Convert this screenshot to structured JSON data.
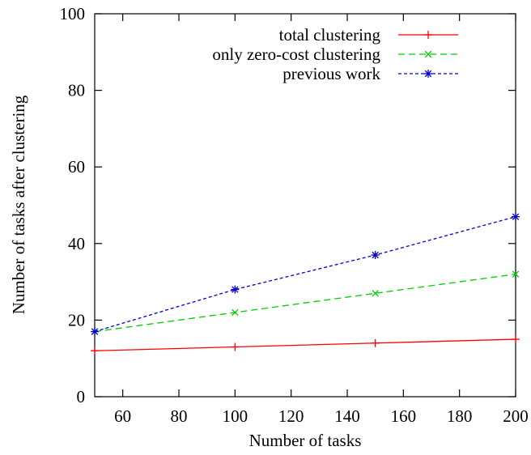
{
  "chart_data": {
    "type": "line",
    "title": "",
    "xlabel": "Number of tasks",
    "ylabel": "Number of tasks after clustering",
    "xlim": [
      50,
      200
    ],
    "ylim": [
      0,
      100
    ],
    "xticks": [
      60,
      80,
      100,
      120,
      140,
      160,
      180,
      200
    ],
    "yticks": [
      0,
      20,
      40,
      60,
      80,
      100
    ],
    "grid": false,
    "legend_position": "top-right",
    "series": [
      {
        "name": "total clustering",
        "color": "#ff0000",
        "dash": "solid",
        "marker": "plus",
        "x": [
          50,
          100,
          150,
          200
        ],
        "y": [
          12,
          13,
          14,
          15
        ]
      },
      {
        "name": "only zero-cost clustering",
        "color": "#00cc00",
        "dash": "dashed",
        "marker": "cross",
        "x": [
          50,
          100,
          150,
          200
        ],
        "y": [
          17,
          22,
          27,
          32
        ]
      },
      {
        "name": "previous work",
        "color": "#0000cc",
        "dash": "dotted",
        "marker": "star",
        "x": [
          50,
          100,
          150,
          200
        ],
        "y": [
          17,
          28,
          37,
          47
        ]
      }
    ]
  }
}
